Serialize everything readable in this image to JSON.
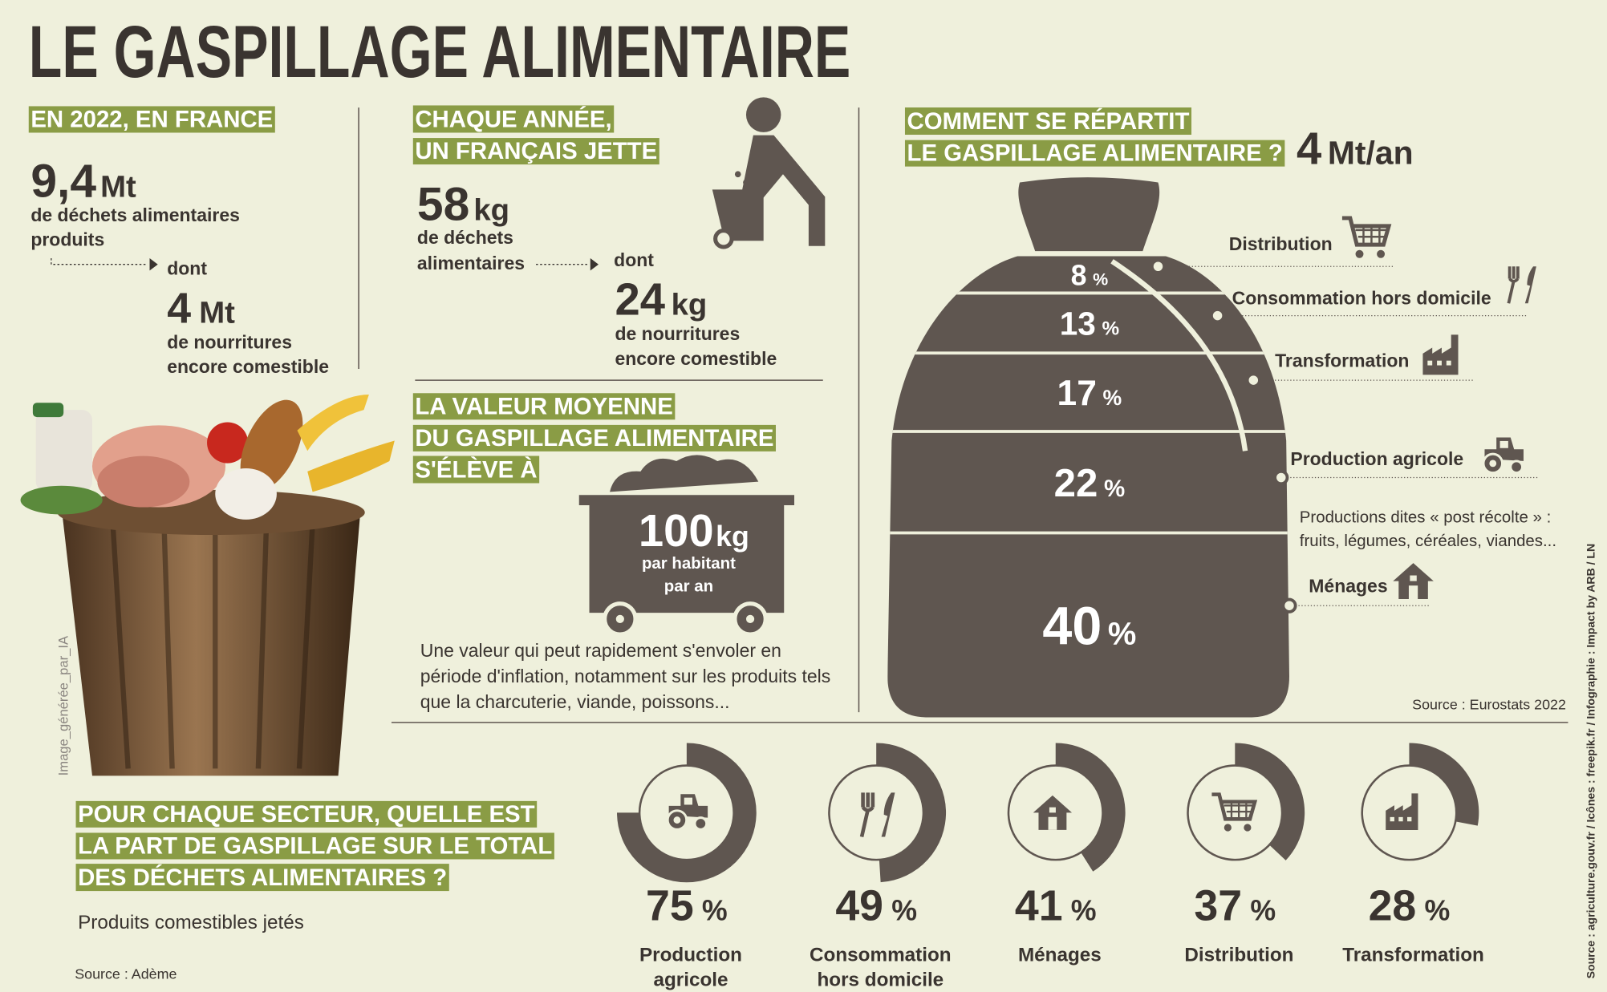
{
  "header": {
    "title": "LE GASPILLAGE ALIMENTAIRE"
  },
  "france": {
    "heading": "EN 2022, EN FRANCE",
    "total": {
      "value": "9,4",
      "unit": "Mt"
    },
    "total_label": [
      "de déchets alimentaires",
      "produits"
    ],
    "dont": "dont",
    "edible": {
      "value": 4,
      "unit": "Mt"
    },
    "edible_label": [
      "de nourritures",
      "encore comestible"
    ]
  },
  "per_person": {
    "heading": [
      "CHAQUE ANNÉE,",
      "UN FRANÇAIS JETTE"
    ],
    "total": {
      "value": 58,
      "unit": "kg"
    },
    "total_label": [
      "de déchets",
      "alimentaires"
    ],
    "dont": "dont",
    "edible": {
      "value": 24,
      "unit": "kg"
    },
    "edible_label": [
      "de nourritures",
      "encore comestible"
    ]
  },
  "average": {
    "heading": [
      "LA VALEUR MOYENNE",
      "DU GASPILLAGE ALIMENTAIRE",
      "S'ÉLÈVE À"
    ],
    "amount": {
      "value": 100,
      "unit": "kg"
    },
    "amount_label": [
      "par habitant",
      "par an"
    ],
    "note": [
      "Une valeur qui peut rapidement s'envoler en",
      "période d'inflation, notamment sur les produits tels",
      "que la charcuterie, viande, poissons..."
    ]
  },
  "breakdown": {
    "heading": [
      "COMMENT SE RÉPARTIT",
      "LE GASPILLAGE ALIMENTAIRE ?"
    ],
    "total": {
      "value": 4,
      "unit": "Mt/an"
    },
    "unit": "%",
    "sectors": [
      {
        "name": "Distribution",
        "value": 8
      },
      {
        "name": "Consommation hors domicile",
        "value": 13
      },
      {
        "name": "Transformation",
        "value": 17
      },
      {
        "name": "Production agricole",
        "value": 22,
        "note": [
          "Productions dites « post récolte » :",
          "fruits, légumes, céréales, viandes..."
        ]
      },
      {
        "name": "Ménages",
        "value": 40
      }
    ],
    "source": "Source : Eurostats 2022"
  },
  "share": {
    "heading": [
      "POUR CHAQUE SECTEUR, QUELLE EST",
      "LA PART DE GASPILLAGE  SUR LE TOTAL",
      "DES DÉCHETS ALIMENTAIRES ?"
    ],
    "subtitle": "Produits comestibles jetés",
    "unit": "%",
    "sectors": [
      {
        "name": [
          "Production",
          "agricole"
        ],
        "value": 75
      },
      {
        "name": [
          "Consommation",
          "hors domicile"
        ],
        "value": 49
      },
      {
        "name": [
          "Ménages"
        ],
        "value": 41
      },
      {
        "name": [
          "Distribution"
        ],
        "value": 37
      },
      {
        "name": [
          "Transformation"
        ],
        "value": 28
      }
    ],
    "source": "Source : Adème"
  },
  "photo_credit": "Image_générée_par_IA",
  "credits": "Source : agriculture.gouv.fr / Icônes : freepik.fr / Infographie : Impact by ARB / LN"
}
